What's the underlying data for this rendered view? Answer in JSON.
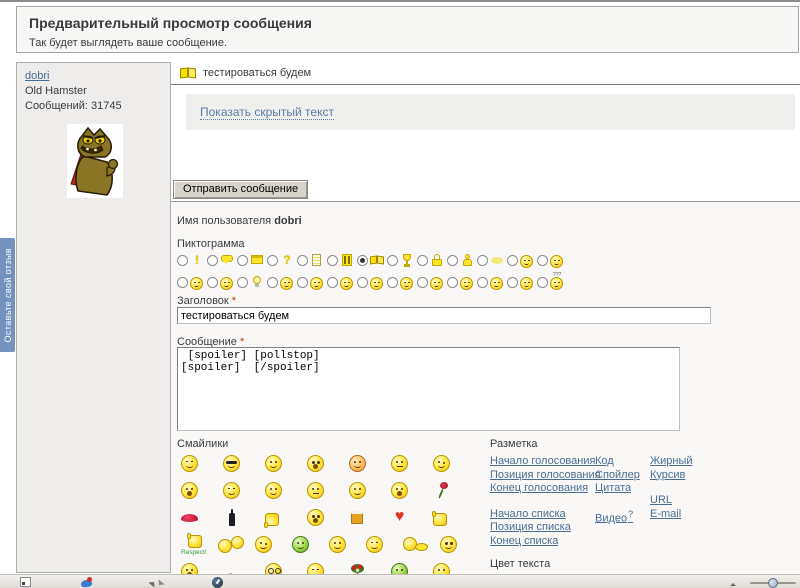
{
  "header": {
    "title": "Предварительный просмотр сообщения",
    "subtitle": "Так будет выглядеть ваше сообщение."
  },
  "feedback_tab": {
    "label": "Оставьте свой отзыв",
    "color": "#7292bf"
  },
  "user_panel": {
    "username": "dobri",
    "rank": "Old Hamster",
    "posts": "Сообщений: 31745",
    "avatar": "hamster-cartoon-avatar"
  },
  "preview": {
    "topic_icon": "open-book-icon",
    "topic_title": "тестироваться будем",
    "hidden_text_link": "Показать скрытый текст",
    "submit_label": "Отправить сообщение"
  },
  "form": {
    "username_label": "Имя пользователя",
    "username_value": "dobri",
    "pictogram_label": "Пиктограмма",
    "pictogram_rows": [
      [
        {
          "icon": "exclamation"
        },
        {
          "icon": "speech-bubble"
        },
        {
          "icon": "window"
        },
        {
          "icon": "question"
        },
        {
          "icon": "note"
        },
        {
          "icon": "film"
        },
        {
          "icon": "open-book",
          "selected": true
        },
        {
          "icon": "trophy"
        },
        {
          "icon": "lock"
        },
        {
          "icon": "person"
        },
        {
          "icon": "blob"
        },
        {
          "icon": "smiley-grin"
        },
        {
          "icon": "smiley-smile"
        }
      ],
      [
        {
          "icon": "smiley-shocked"
        },
        {
          "icon": "smiley-eek"
        },
        {
          "icon": "lightbulb"
        },
        {
          "icon": "smiley-tongue"
        },
        {
          "icon": "smiley-blush"
        },
        {
          "icon": "smiley-wink"
        },
        {
          "icon": "smiley-grin2"
        },
        {
          "icon": "smiley-cool"
        },
        {
          "icon": "smiley-laugh"
        },
        {
          "icon": "smiley-smile2"
        },
        {
          "icon": "smiley-surprised"
        },
        {
          "icon": "smiley-angry"
        },
        {
          "icon": "smiley-confused"
        }
      ]
    ],
    "subject_label": "Заголовок",
    "required_mark": "*",
    "subject_value": "тестироваться будем",
    "message_label": "Сообщение",
    "message_value": " [spoiler] [pollstop]\n[spoiler]  [/spoiler]",
    "smilies_label": "Смайлики",
    "respect_label": "Respect!",
    "smilies_rows": [
      [
        "annoyed",
        "cool",
        "halo",
        "shocked",
        "blush",
        "neutral",
        "wink"
      ],
      [
        "scared",
        "sly",
        "smile",
        "think",
        "giggle",
        "tongue",
        "rose"
      ],
      [
        "lips",
        "bottle",
        "thumb-down",
        "omg",
        "beer",
        "heart",
        "thumb-up"
      ],
      [
        "respect",
        "hug",
        "wink2",
        "clown",
        "smile2",
        "sleepy",
        "crawl",
        "rolleyes"
      ],
      [
        "laugh",
        "tiny",
        "nerd",
        "sleeping",
        "bouquet",
        "sick",
        "grin"
      ]
    ],
    "markup_label": "Разметка",
    "markup_columns": [
      [
        {
          "label": "Начало голосования"
        },
        {
          "label": "Позиция голосования"
        },
        {
          "label": "Конец голосования"
        },
        {
          "gap": true
        },
        {
          "label": "Начало списка"
        },
        {
          "label": "Позиция списка"
        },
        {
          "label": "Конец списка"
        }
      ],
      [
        {
          "label": "Код"
        },
        {
          "label": "Спойлер"
        },
        {
          "label": "Цитата"
        },
        {
          "gap": true
        },
        {
          "label": "Видео",
          "sup": "?"
        }
      ],
      [
        {
          "label": "Жирный"
        },
        {
          "label": "Курсив"
        },
        {
          "gap": true
        },
        {
          "label": "URL"
        },
        {
          "label": "E-mail"
        }
      ]
    ],
    "text_color_label": "Цвет текста"
  },
  "statusbar": {
    "icons": [
      "panel-toggle-icon",
      "sync-icon",
      "share-icon",
      "turbo-icon"
    ],
    "zoom_slider": "zoom-slider"
  },
  "colors": {
    "link": "#4a6d94",
    "smiley_yellow": "#ffe334",
    "tab_blue": "#7292bf",
    "form_bg": "#f9f8f7"
  }
}
